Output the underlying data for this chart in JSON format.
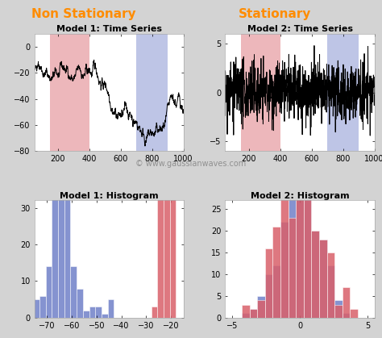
{
  "title_left": "Non Stationary",
  "title_right": "Stationary",
  "title_color": "#FF8C00",
  "title_fontsize": 11,
  "subplot_titles": [
    "Model 1: Time Series",
    "Model 2: Time Series",
    "Model 1: Histogram",
    "Model 2: Histogram"
  ],
  "n_samples": 1000,
  "random_seed": 42,
  "red_region": [
    150,
    400
  ],
  "blue_region": [
    700,
    900
  ],
  "red_color": "#d9606a",
  "blue_color": "#7080c8",
  "hist_alpha": 0.85,
  "ts1_ylim": [
    -80,
    10
  ],
  "ts2_ylim": [
    -6,
    6
  ],
  "hist1_xlim": [
    -75,
    -15
  ],
  "hist2_xlim": [
    -5.5,
    5.5
  ],
  "hist1_ylim": [
    0,
    32
  ],
  "hist2_ylim": [
    0,
    27
  ],
  "watermark": "© www.gaussianwaves.com",
  "watermark_color": "#888888",
  "watermark_fontsize": 7,
  "bg_color": "#d3d3d3",
  "plot_bg_color": "#ffffff",
  "tick_fontsize": 7,
  "label_fontsize": 8
}
